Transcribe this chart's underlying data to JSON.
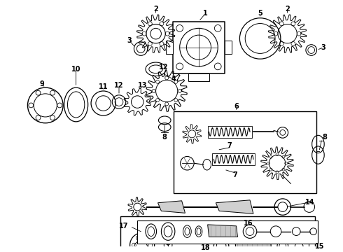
{
  "bg_color": "#ffffff",
  "lc": "#000000",
  "fig_width": 4.9,
  "fig_height": 3.6,
  "dpi": 100
}
